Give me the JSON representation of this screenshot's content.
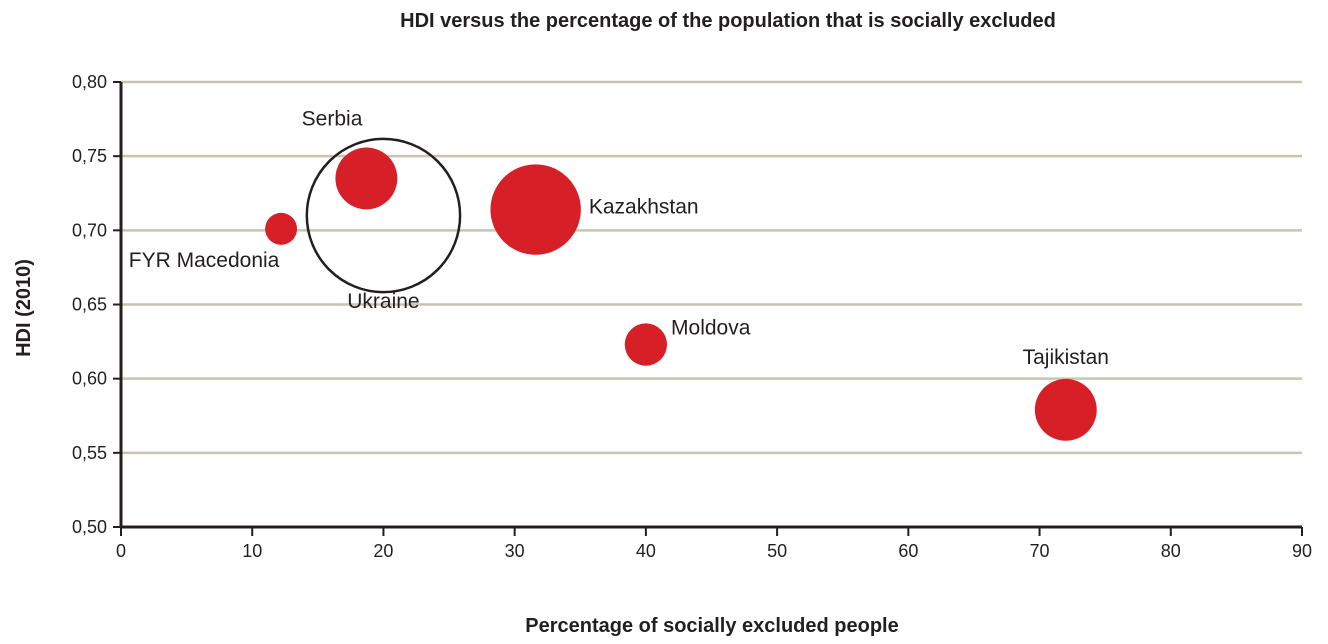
{
  "chart_data": {
    "type": "scatter",
    "title": "HDI versus the percentage of the population that is socially excluded",
    "xlabel": "Percentage of socially excluded people",
    "ylabel": "HDI (2010)",
    "xlim": [
      0,
      90
    ],
    "ylim": [
      0.5,
      0.8
    ],
    "x_ticks": [
      0,
      10,
      20,
      30,
      40,
      50,
      60,
      70,
      80,
      90
    ],
    "y_ticks": [
      0.5,
      0.55,
      0.6,
      0.65,
      0.7,
      0.75,
      0.8
    ],
    "x_tick_labels": [
      "0",
      "10",
      "20",
      "30",
      "40",
      "50",
      "60",
      "70",
      "80",
      "90"
    ],
    "y_tick_labels": [
      "0,50",
      "0,55",
      "0,60",
      "0,65",
      "0,70",
      "0,75",
      "0,80"
    ],
    "grid": "horizontal",
    "point_color": "#d71f27",
    "outline_color": "#231f20",
    "points": [
      {
        "label": "FYR Macedonia",
        "x": 12.2,
        "y": 0.701,
        "size": 2,
        "filled": true
      },
      {
        "label": "Serbia",
        "x": 18.7,
        "y": 0.735,
        "size": 7.5,
        "filled": true
      },
      {
        "label": "Ukraine",
        "x": 20.0,
        "y": 0.71,
        "size": 46,
        "filled": false
      },
      {
        "label": "Kazakhstan",
        "x": 31.6,
        "y": 0.714,
        "size": 16,
        "filled": true
      },
      {
        "label": "Moldova",
        "x": 40.0,
        "y": 0.623,
        "size": 3.5,
        "filled": true
      },
      {
        "label": "Tajikistan",
        "x": 72.0,
        "y": 0.579,
        "size": 7.5,
        "filled": true
      }
    ]
  }
}
